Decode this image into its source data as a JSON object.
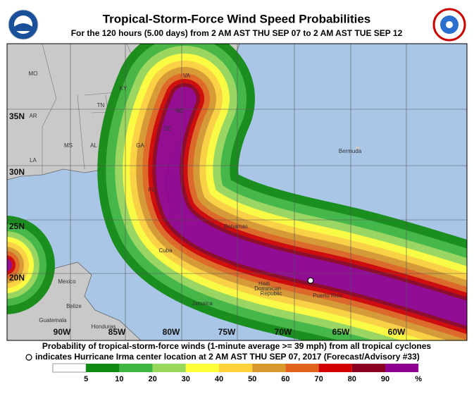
{
  "header": {
    "title": "Tropical-Storm-Force Wind Speed Probabilities",
    "subtitle": "For the 120 hours (5.00 days) from 2 AM AST THU SEP 07 to 2 AM AST TUE SEP 12"
  },
  "map": {
    "lat_labels": [
      "35N",
      "30N",
      "25N",
      "20N"
    ],
    "lon_labels": [
      "90W",
      "85W",
      "80W",
      "75W",
      "70W",
      "65W",
      "60W"
    ],
    "places": [
      "MO",
      "KY",
      "VA",
      "TN",
      "NC",
      "AR",
      "SC",
      "MS",
      "AL",
      "GA",
      "LA",
      "FL",
      "Bermuda",
      "Bahamas",
      "Cuba",
      "Mexico",
      "Belize",
      "Jamaica",
      "Guatemala",
      "Honduras",
      "Haiti",
      "Dominican",
      "Republic",
      "Puerto Rico"
    ]
  },
  "footer": {
    "line1": "Probability of tropical-storm-force winds (1-minute average >= 39 mph) from all tropical cyclones",
    "line2": "indicates Hurricane Irma center location at 2 AM AST THU SEP 07, 2017 (Forecast/Advisory #33)"
  },
  "legend": {
    "labels": [
      5,
      10,
      20,
      30,
      40,
      50,
      60,
      70,
      80,
      90,
      "%"
    ],
    "colors": [
      "#ffffff",
      "#108a10",
      "#3fb63f",
      "#98d85a",
      "#ffff3a",
      "#ffd23c",
      "#d9982c",
      "#e0641e",
      "#d00000",
      "#8a0020",
      "#90008e"
    ]
  }
}
